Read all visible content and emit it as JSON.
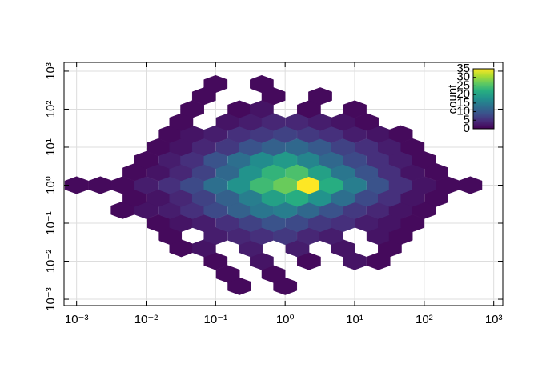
{
  "chart_data": {
    "type": "hexbin",
    "xscale": "log",
    "yscale": "log",
    "xlim": [
      0.00066,
      1350
    ],
    "ylim": [
      0.00068,
      1700
    ],
    "xticks": [
      {
        "value": 0.001,
        "label": "10⁻³"
      },
      {
        "value": 0.01,
        "label": "10⁻²"
      },
      {
        "value": 0.1,
        "label": "10⁻¹"
      },
      {
        "value": 1,
        "label": "10⁰"
      },
      {
        "value": 10,
        "label": "10¹"
      },
      {
        "value": 100,
        "label": "10²"
      },
      {
        "value": 1000,
        "label": "10³"
      }
    ],
    "yticks": [
      {
        "value": 0.001,
        "label": "10⁻³"
      },
      {
        "value": 0.01,
        "label": "10⁻²"
      },
      {
        "value": 0.1,
        "label": "10⁻¹"
      },
      {
        "value": 1,
        "label": "10⁰"
      },
      {
        "value": 10,
        "label": "10¹"
      },
      {
        "value": 100,
        "label": "10²"
      },
      {
        "value": 1000,
        "label": "10³"
      }
    ],
    "grid": true,
    "colormap": "viridis",
    "colorbar": {
      "label": "count",
      "clim": [
        0,
        35
      ],
      "ticks": [
        0,
        5,
        10,
        15,
        20,
        25,
        30,
        35
      ]
    },
    "rows": [
      {
        "y": 0.0022,
        "x": [
          0.22,
          1
        ],
        "values": [
          1,
          1
        ]
      },
      {
        "y": 0.0046,
        "x": [
          0.15,
          0.68
        ],
        "values": [
          1,
          1
        ]
      },
      {
        "y": 0.01,
        "x": [
          0.1,
          0.46,
          2.2,
          10,
          22
        ],
        "values": [
          1,
          2,
          1,
          2,
          1
        ]
      },
      {
        "y": 0.022,
        "x": [
          0.032,
          0.068,
          0.32,
          1.5,
          6.8,
          32
        ],
        "values": [
          1,
          2,
          3,
          3,
          2,
          1
        ]
      },
      {
        "y": 0.046,
        "x": [
          0.022,
          0.1,
          0.22,
          0.46,
          1,
          2.2,
          4.6,
          22,
          46
        ],
        "values": [
          1,
          3,
          4,
          5,
          6,
          4,
          3,
          2,
          1
        ]
      },
      {
        "y": 0.1,
        "x": [
          0.015,
          0.032,
          0.068,
          0.15,
          0.32,
          0.68,
          1.5,
          3.2,
          6.8,
          15,
          32,
          68
        ],
        "values": [
          1,
          2,
          3,
          5,
          7,
          9,
          8,
          6,
          5,
          3,
          2,
          1
        ]
      },
      {
        "y": 0.22,
        "x": [
          0.0046,
          0.01,
          0.022,
          0.046,
          0.1,
          0.22,
          0.46,
          1,
          2.2,
          4.6,
          10,
          22,
          46,
          100
        ],
        "values": [
          1,
          2,
          3,
          5,
          8,
          11,
          14,
          15,
          12,
          9,
          6,
          4,
          2,
          1
        ]
      },
      {
        "y": 0.46,
        "x": [
          0.0068,
          0.015,
          0.032,
          0.068,
          0.15,
          0.32,
          0.68,
          1.5,
          3.2,
          6.8,
          15,
          32,
          68,
          150
        ],
        "values": [
          1,
          2,
          4,
          7,
          11,
          15,
          20,
          22,
          18,
          13,
          8,
          5,
          2,
          1
        ]
      },
      {
        "y": 1,
        "x": [
          0.001,
          0.0022,
          0.0046,
          0.01,
          0.022,
          0.046,
          0.1,
          0.22,
          0.46,
          1,
          2.2,
          4.6,
          10,
          22,
          46,
          100,
          220,
          460
        ],
        "values": [
          1,
          1,
          1,
          3,
          5,
          8,
          13,
          18,
          24,
          27,
          35,
          22,
          15,
          9,
          5,
          2,
          1,
          1
        ]
      },
      {
        "y": 2.2,
        "x": [
          0.0068,
          0.015,
          0.032,
          0.068,
          0.15,
          0.32,
          0.68,
          1.5,
          3.2,
          6.8,
          15,
          32,
          68,
          150
        ],
        "values": [
          1,
          2,
          4,
          7,
          12,
          18,
          23,
          25,
          20,
          14,
          9,
          5,
          2,
          1
        ]
      },
      {
        "y": 4.6,
        "x": [
          0.01,
          0.022,
          0.046,
          0.1,
          0.22,
          0.46,
          1,
          2.2,
          4.6,
          10,
          22,
          46,
          100
        ],
        "values": [
          1,
          3,
          5,
          9,
          13,
          17,
          19,
          16,
          12,
          8,
          5,
          3,
          1
        ]
      },
      {
        "y": 10,
        "x": [
          0.015,
          0.032,
          0.068,
          0.15,
          0.32,
          0.68,
          1.5,
          3.2,
          6.8,
          15,
          32,
          68
        ],
        "values": [
          1,
          2,
          4,
          6,
          9,
          11,
          12,
          10,
          7,
          5,
          3,
          1
        ]
      },
      {
        "y": 22,
        "x": [
          0.022,
          0.046,
          0.1,
          0.22,
          0.46,
          1,
          2.2,
          4.6,
          10,
          22,
          46
        ],
        "values": [
          1,
          2,
          3,
          5,
          6,
          7,
          6,
          5,
          3,
          2,
          1
        ]
      },
      {
        "y": 46,
        "x": [
          0.032,
          0.15,
          0.32,
          0.68,
          1.5,
          3.2,
          6.8,
          15
        ],
        "values": [
          1,
          2,
          3,
          4,
          4,
          3,
          2,
          1
        ]
      },
      {
        "y": 100,
        "x": [
          0.046,
          0.22,
          0.46,
          2.2,
          10
        ],
        "values": [
          1,
          1,
          2,
          1,
          1
        ]
      },
      {
        "y": 220,
        "x": [
          0.068,
          0.68,
          3.2
        ],
        "values": [
          1,
          1,
          1
        ]
      },
      {
        "y": 460,
        "x": [
          0.1,
          0.46
        ],
        "values": [
          1,
          1
        ]
      }
    ]
  }
}
